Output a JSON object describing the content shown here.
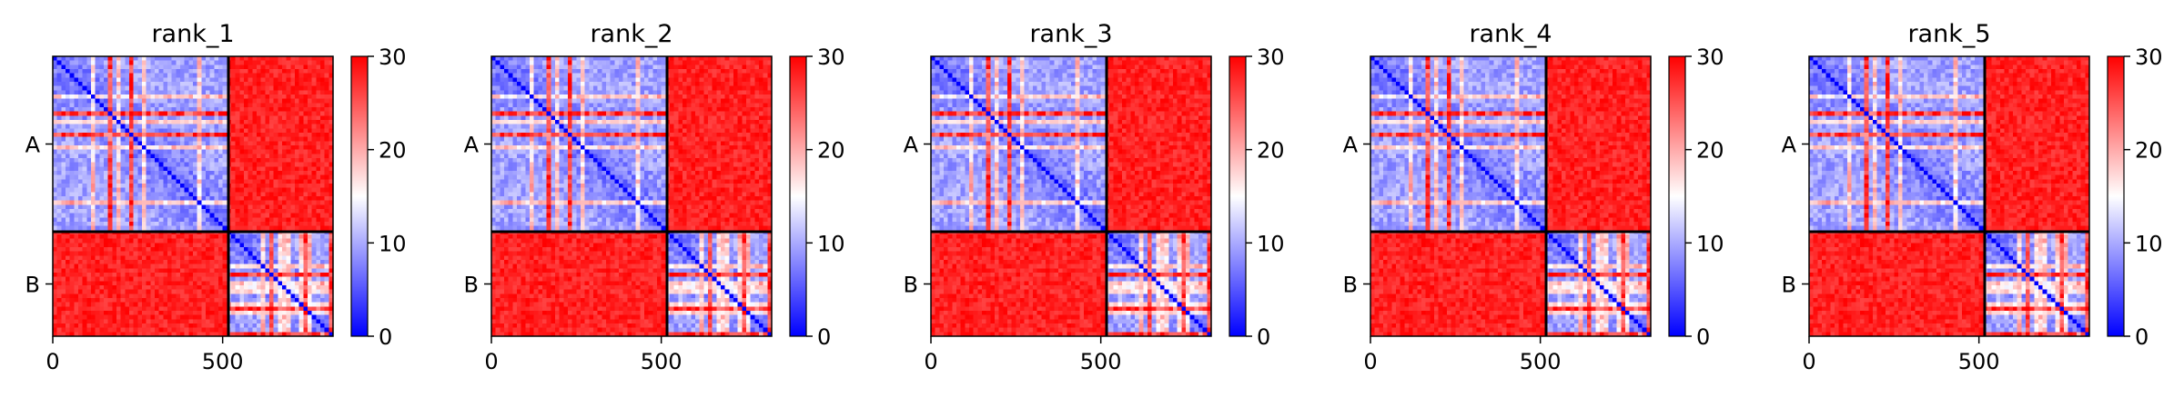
{
  "chart_data": {
    "type": "heatmap",
    "value_range": [
      0,
      30
    ],
    "colormap": [
      "#0000ff",
      "#ffffff",
      "#ff0000"
    ],
    "colorbar_ticks": [
      "0",
      "10",
      "20",
      "30"
    ],
    "x_ticks": [
      {
        "value": 0,
        "label": "0"
      },
      {
        "value": 500,
        "label": "500"
      }
    ],
    "x_range": [
      0,
      825
    ],
    "chains": [
      {
        "label": "A",
        "start": 0,
        "end": 517
      },
      {
        "label": "B",
        "start": 517,
        "end": 825
      }
    ],
    "panels": [
      {
        "title": "rank_1"
      },
      {
        "title": "rank_2"
      },
      {
        "title": "rank_3"
      },
      {
        "title": "rank_4"
      },
      {
        "title": "rank_5"
      }
    ],
    "grid": false
  }
}
